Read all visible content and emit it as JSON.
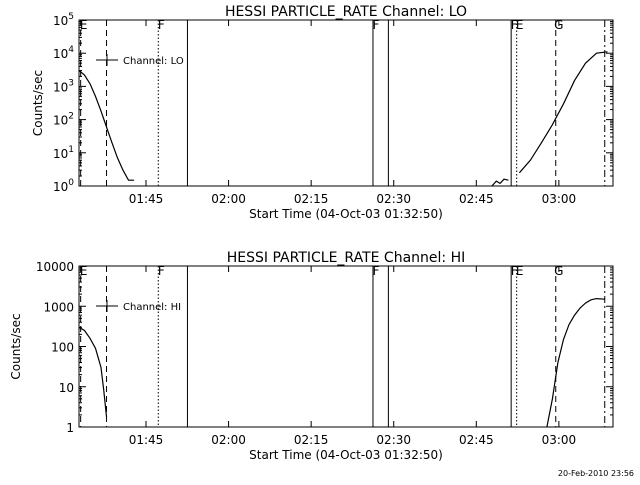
{
  "chart_data": [
    {
      "type": "line",
      "title": "HESSI PARTICLE_RATE Channel: LO",
      "xlabel": "Start Time (04-Oct-03 01:32:50)",
      "ylabel": "Counts/sec",
      "yscale": "log",
      "ylim": [
        1,
        100000
      ],
      "x_unit": "minutes since 01:32:50",
      "xlim": [
        0,
        97
      ],
      "x_tick_labels": [
        "01:45",
        "02:00",
        "02:15",
        "02:30",
        "02:45",
        "03:00"
      ],
      "x_tick_minutes": [
        12.17,
        27.17,
        42.17,
        57.17,
        72.17,
        87.17
      ],
      "y_tick_labels": [
        {
          "base": "10",
          "exp": "0",
          "value": 1
        },
        {
          "base": "10",
          "exp": "1",
          "value": 10
        },
        {
          "base": "10",
          "exp": "2",
          "value": 100
        },
        {
          "base": "10",
          "exp": "3",
          "value": 1000
        },
        {
          "base": "10",
          "exp": "4",
          "value": 10000
        },
        {
          "base": "10",
          "exp": "5",
          "value": 100000
        }
      ],
      "legend": {
        "label": "Channel: LO",
        "placement": "top-left"
      },
      "grid": false,
      "series": [
        {
          "segments": [
            {
              "x": [
                0,
                1,
                2,
                3,
                4,
                5,
                6,
                7,
                8,
                9,
                10
              ],
              "y": [
                3000,
                2200,
                1200,
                500,
                180,
                60,
                20,
                7,
                3,
                1.5,
                1.5
              ]
            },
            {
              "x": [
                75.0,
                75.8,
                76.5,
                77.2,
                78.0
              ],
              "y": [
                1.0,
                1.4,
                1.2,
                1.6,
                1.5
              ]
            },
            {
              "x": [
                80,
                82,
                84,
                86,
                88,
                90,
                92,
                94,
                96
              ],
              "y": [
                2.5,
                6,
                20,
                70,
                300,
                1500,
                5000,
                10000,
                11000
              ]
            }
          ]
        }
      ],
      "markers": [
        {
          "label": "E",
          "x": 0.3,
          "style": "dashed"
        },
        {
          "label": "",
          "x": 5.0,
          "style": "dashed"
        },
        {
          "label": "F",
          "x": 14.4,
          "style": "dotted"
        },
        {
          "label": "",
          "x": 19.7,
          "style": "solid"
        },
        {
          "label": "F",
          "x": 53.4,
          "style": "solid"
        },
        {
          "label": "",
          "x": 56.2,
          "style": "solid"
        },
        {
          "label": "F",
          "x": 78.5,
          "style": "solid"
        },
        {
          "label": "E",
          "x": 79.5,
          "style": "dotted"
        },
        {
          "label": "G",
          "x": 86.6,
          "style": "dashed"
        },
        {
          "label": "",
          "x": 95.5,
          "style": "dashdot"
        }
      ]
    },
    {
      "type": "line",
      "title": "HESSI PARTICLE_RATE Channel: HI",
      "xlabel": "Start Time (04-Oct-03 01:32:50)",
      "ylabel": "Counts/sec",
      "yscale": "log",
      "ylim": [
        1,
        10000
      ],
      "x_unit": "minutes since 01:32:50",
      "xlim": [
        0,
        97
      ],
      "x_tick_labels": [
        "01:45",
        "02:00",
        "02:15",
        "02:30",
        "02:45",
        "03:00"
      ],
      "x_tick_minutes": [
        12.17,
        27.17,
        42.17,
        57.17,
        72.17,
        87.17
      ],
      "y_tick_labels": [
        {
          "text": "1",
          "value": 1
        },
        {
          "text": "10",
          "value": 10
        },
        {
          "text": "100",
          "value": 100
        },
        {
          "text": "1000",
          "value": 1000
        },
        {
          "text": "10000",
          "value": 10000
        }
      ],
      "legend": {
        "label": "Channel: HI",
        "placement": "top-left"
      },
      "grid": false,
      "series": [
        {
          "segments": [
            {
              "x": [
                0,
                1,
                2,
                3,
                4,
                4.5,
                5
              ],
              "y": [
                300,
                250,
                160,
                90,
                30,
                8,
                1.8
              ]
            },
            {
              "x": [
                85.0,
                86.0,
                87.0,
                88.0,
                89.0,
                90.0,
                91.0,
                92.0,
                93.0,
                94.0,
                95.5
              ],
              "y": [
                1,
                5,
                40,
                150,
                350,
                600,
                900,
                1200,
                1450,
                1550,
                1500
              ]
            }
          ]
        }
      ],
      "markers": [
        {
          "label": "E",
          "x": 0.3,
          "style": "dashed"
        },
        {
          "label": "",
          "x": 5.0,
          "style": "dashed"
        },
        {
          "label": "F",
          "x": 14.4,
          "style": "dotted"
        },
        {
          "label": "",
          "x": 19.7,
          "style": "solid"
        },
        {
          "label": "F",
          "x": 53.4,
          "style": "solid"
        },
        {
          "label": "",
          "x": 56.2,
          "style": "solid"
        },
        {
          "label": "F",
          "x": 78.5,
          "style": "solid"
        },
        {
          "label": "E",
          "x": 79.5,
          "style": "dotted"
        },
        {
          "label": "G",
          "x": 86.6,
          "style": "dashed"
        },
        {
          "label": "",
          "x": 95.5,
          "style": "dashdot"
        }
      ]
    }
  ],
  "footer": {
    "timestamp": "20-Feb-2010 23:56"
  }
}
